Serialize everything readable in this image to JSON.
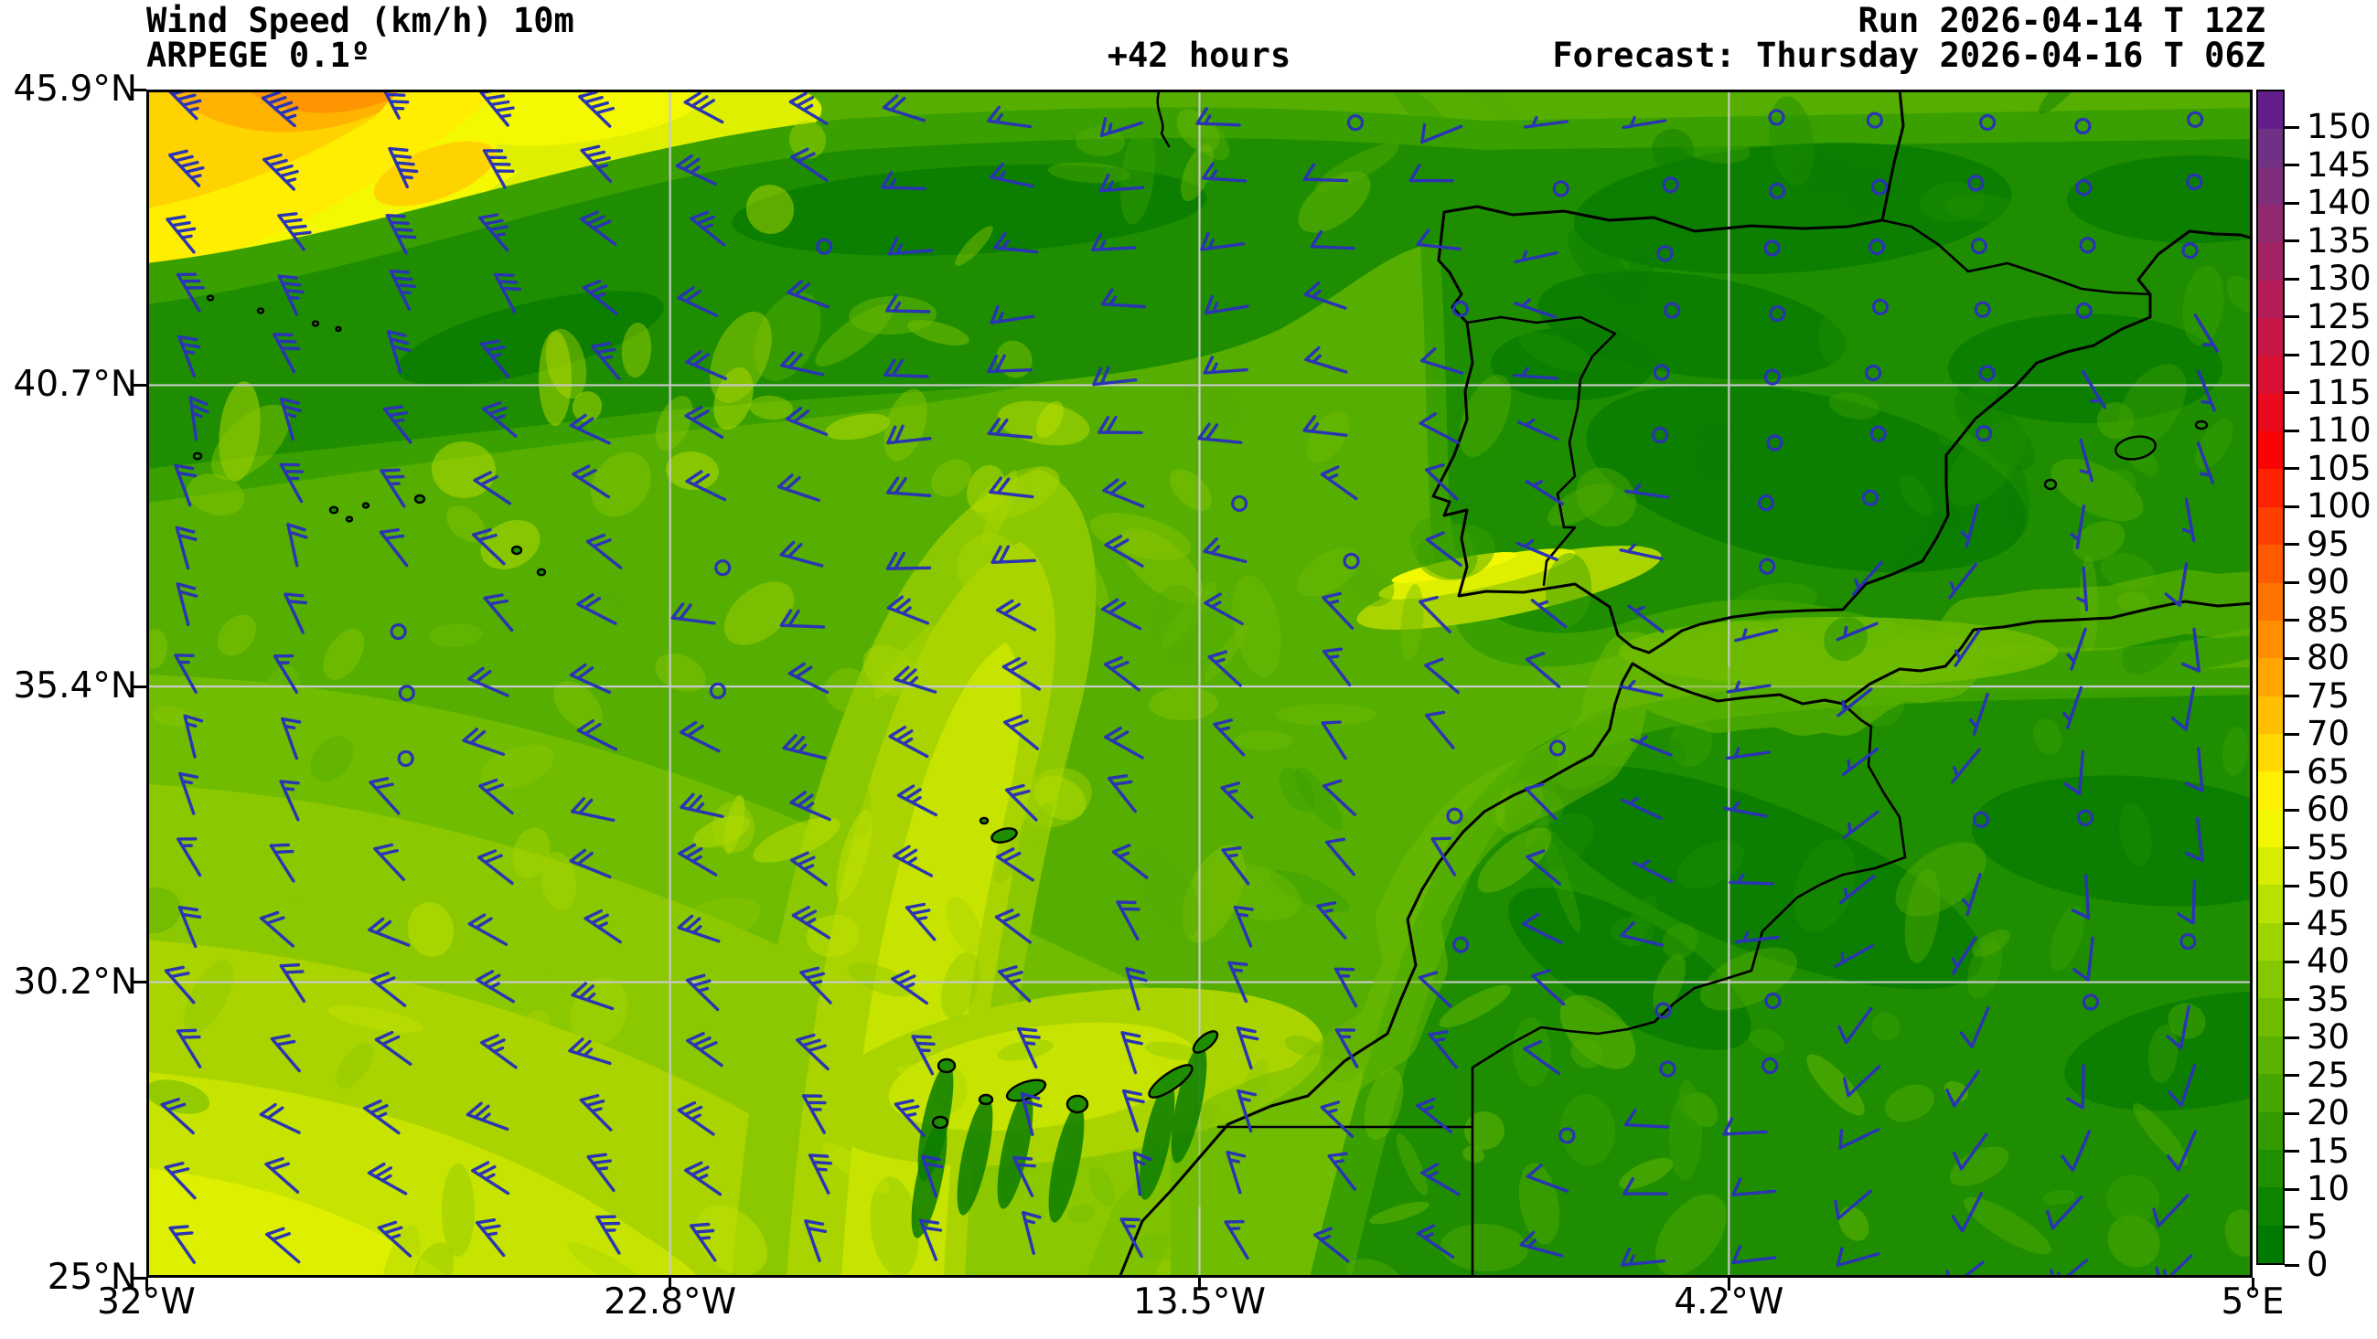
{
  "header": {
    "title": "Wind Speed (km/h) 10m",
    "model": "ARPEGE 0.1º",
    "lead_time": "+42 hours",
    "run": "Run 2026-04-14 T 12Z",
    "forecast": "Forecast: Thursday 2026-04-16 T 06Z"
  },
  "axes": {
    "lon_min": -32,
    "lon_max": 5,
    "lat_min": 25,
    "lat_max": 45.9,
    "x_ticks": [
      {
        "label": "32°W",
        "lon": -32
      },
      {
        "label": "22.8°W",
        "lon": -22.8
      },
      {
        "label": "13.5°W",
        "lon": -13.5
      },
      {
        "label": "4.2°W",
        "lon": -4.2
      },
      {
        "label": "5°E",
        "lon": 5
      }
    ],
    "y_ticks": [
      {
        "label": "45.9°N",
        "lat": 45.9
      },
      {
        "label": "40.7°N",
        "lat": 40.7
      },
      {
        "label": "35.4°N",
        "lat": 35.4
      },
      {
        "label": "30.2°N",
        "lat": 30.2
      },
      {
        "label": "25°N",
        "lat": 25
      }
    ],
    "grid_lons": [
      -22.8,
      -13.5,
      -4.2
    ],
    "grid_lats": [
      40.7,
      35.4,
      30.2
    ]
  },
  "colorbar": {
    "unit": "km/h",
    "min": 0,
    "max": 150,
    "step": 5,
    "extend_above": true,
    "tick_labels": [
      "150",
      "145",
      "140",
      "135",
      "130",
      "125",
      "120",
      "115",
      "110",
      "105",
      "100",
      "95",
      "90",
      "85",
      "80",
      "75",
      "70",
      "65",
      "60",
      "55",
      "50",
      "45",
      "40",
      "35",
      "30",
      "25",
      "20",
      "15",
      "10",
      "5",
      "0"
    ],
    "colors_bottom_to_top": [
      "#007a00",
      "#0d8500",
      "#1f9000",
      "#339b00",
      "#47a600",
      "#5bb100",
      "#70bc00",
      "#86c800",
      "#9dd400",
      "#b8e000",
      "#d6ec00",
      "#f2f700",
      "#ffef00",
      "#ffd800",
      "#ffbf00",
      "#ffa600",
      "#ff8d00",
      "#ff7400",
      "#ff5a00",
      "#ff3f00",
      "#ff2100",
      "#fb0303",
      "#ea0a1e",
      "#d81134",
      "#c61747",
      "#b41d57",
      "#a22364",
      "#902970",
      "#7e2e7a",
      "#6e3184",
      "#641e8c"
    ]
  },
  "map_style": {
    "barb_color": "#2a34b4",
    "coast_color": "#000000",
    "grid_color": "#c9c9c9",
    "terrain_palette": {
      "g0": "#0a7c00",
      "g1": "#1e8e00",
      "g2": "#39a000",
      "g3": "#55ae00",
      "g4": "#70bc00",
      "g5": "#8cc800",
      "g6": "#a9d400",
      "g7": "#c6e400",
      "g8": "#def000",
      "y1": "#f4f800",
      "y2": "#ffee00",
      "o1": "#ffd300",
      "o2": "#ffb200",
      "o3": "#ff9500"
    }
  }
}
